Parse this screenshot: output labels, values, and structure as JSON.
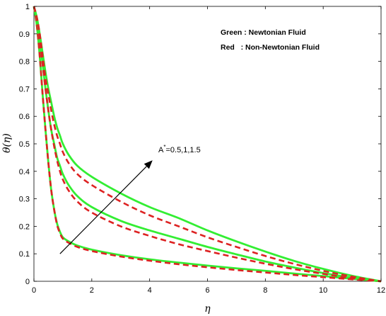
{
  "chart_data": {
    "type": "line",
    "xlabel": "η",
    "ylabel": "θ(η)",
    "xlim": [
      0,
      12
    ],
    "ylim": [
      0,
      1
    ],
    "xticks": [
      0,
      2,
      4,
      6,
      8,
      10,
      12
    ],
    "yticks": [
      0,
      0.1,
      0.2,
      0.3,
      0.4,
      0.5,
      0.6,
      0.7,
      0.8,
      0.9,
      1
    ],
    "grid": false,
    "legend_position": "top-right",
    "legend_entries": [
      {
        "text": "Green : Newtonian Fluid",
        "color": "#33ee33"
      },
      {
        "text": "Red   : Non-Newtonian Fluid",
        "color": "#dd2222"
      }
    ],
    "annotation": {
      "base": "A",
      "sup": "*",
      "rest": "=0.5,1,1.5"
    },
    "arrow": {
      "from": [
        0.9,
        0.1
      ],
      "to": [
        4.1,
        0.44
      ]
    },
    "colors": {
      "newtonian": "#33ee33",
      "non_newtonian": "#dd2222",
      "arrow": "#000000"
    },
    "series": [
      {
        "group": "A*=0.5",
        "newtonian": {
          "x": [
            0,
            0.1,
            0.2,
            0.3,
            0.4,
            0.5,
            0.6,
            0.7,
            0.8,
            0.9,
            1.0,
            1.2,
            1.5,
            2,
            3,
            4,
            5,
            6,
            7,
            8,
            9,
            10,
            11,
            12
          ],
          "y": [
            1,
            0.93,
            0.82,
            0.68,
            0.55,
            0.43,
            0.33,
            0.26,
            0.21,
            0.18,
            0.16,
            0.145,
            0.13,
            0.115,
            0.095,
            0.08,
            0.068,
            0.057,
            0.047,
            0.038,
            0.028,
            0.019,
            0.009,
            0
          ]
        },
        "non_newtonian": {
          "x": [
            0,
            0.1,
            0.2,
            0.3,
            0.4,
            0.5,
            0.6,
            0.7,
            0.8,
            0.9,
            1.0,
            1.2,
            1.5,
            2,
            3,
            4,
            5,
            6,
            7,
            8,
            9,
            10,
            11,
            12
          ],
          "y": [
            1,
            0.93,
            0.82,
            0.68,
            0.55,
            0.43,
            0.33,
            0.26,
            0.205,
            0.175,
            0.155,
            0.14,
            0.125,
            0.11,
            0.09,
            0.075,
            0.062,
            0.051,
            0.041,
            0.032,
            0.023,
            0.015,
            0.007,
            0
          ]
        }
      },
      {
        "group": "A*=1",
        "newtonian": {
          "x": [
            0,
            0.1,
            0.2,
            0.3,
            0.4,
            0.5,
            0.6,
            0.7,
            0.8,
            0.9,
            1.0,
            1.2,
            1.5,
            2,
            3,
            4,
            5,
            6,
            7,
            8,
            9,
            10,
            11,
            12
          ],
          "y": [
            1,
            0.95,
            0.88,
            0.79,
            0.7,
            0.62,
            0.55,
            0.5,
            0.45,
            0.42,
            0.39,
            0.35,
            0.31,
            0.27,
            0.22,
            0.185,
            0.155,
            0.125,
            0.098,
            0.072,
            0.05,
            0.03,
            0.013,
            0
          ]
        },
        "non_newtonian": {
          "x": [
            0,
            0.1,
            0.2,
            0.3,
            0.4,
            0.5,
            0.6,
            0.7,
            0.8,
            0.9,
            1.0,
            1.2,
            1.5,
            2,
            3,
            4,
            5,
            6,
            7,
            8,
            9,
            10,
            11,
            12
          ],
          "y": [
            1,
            0.95,
            0.88,
            0.79,
            0.7,
            0.62,
            0.55,
            0.49,
            0.44,
            0.4,
            0.37,
            0.33,
            0.29,
            0.25,
            0.2,
            0.165,
            0.135,
            0.11,
            0.086,
            0.064,
            0.044,
            0.027,
            0.011,
            0
          ]
        }
      },
      {
        "group": "A*=1.5",
        "newtonian": {
          "x": [
            0,
            0.1,
            0.2,
            0.3,
            0.4,
            0.5,
            0.6,
            0.7,
            0.8,
            0.9,
            1.0,
            1.2,
            1.5,
            2,
            3,
            4,
            5,
            6,
            7,
            8,
            9,
            10,
            11,
            12
          ],
          "y": [
            1,
            0.96,
            0.9,
            0.83,
            0.76,
            0.7,
            0.65,
            0.6,
            0.56,
            0.53,
            0.5,
            0.46,
            0.42,
            0.38,
            0.32,
            0.27,
            0.23,
            0.185,
            0.145,
            0.108,
            0.074,
            0.045,
            0.02,
            0
          ]
        },
        "non_newtonian": {
          "x": [
            0,
            0.1,
            0.2,
            0.3,
            0.4,
            0.5,
            0.6,
            0.7,
            0.8,
            0.9,
            1.0,
            1.2,
            1.5,
            2,
            3,
            4,
            5,
            6,
            7,
            8,
            9,
            10,
            11,
            12
          ],
          "y": [
            1,
            0.96,
            0.9,
            0.82,
            0.74,
            0.68,
            0.62,
            0.57,
            0.53,
            0.5,
            0.47,
            0.43,
            0.39,
            0.35,
            0.29,
            0.24,
            0.2,
            0.16,
            0.125,
            0.092,
            0.063,
            0.038,
            0.017,
            0
          ]
        }
      }
    ]
  }
}
